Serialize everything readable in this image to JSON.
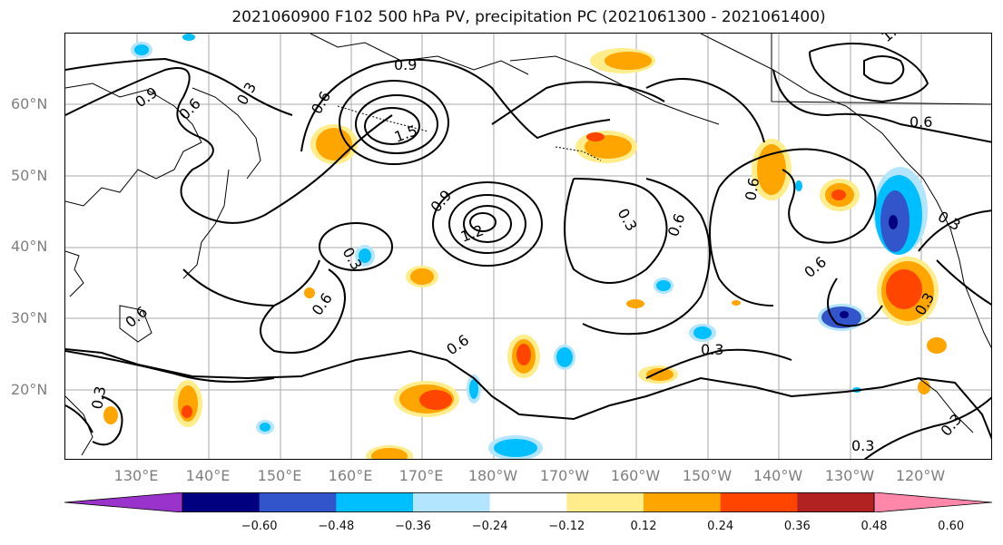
{
  "title": "2021060900 F102 500 hPa PV, precipitation PC (2021061300 - 2021061400)",
  "lat_labels": [
    "60°N",
    "50°N",
    "40°N",
    "30°N",
    "20°N"
  ],
  "lon_labels": [
    "130°E",
    "140°E",
    "150°E",
    "160°E",
    "170°E",
    "180°W",
    "170°W",
    "160°W",
    "150°W",
    "140°W",
    "130°W",
    "120°W"
  ],
  "contour_labels": [
    "0.3",
    "0.6",
    "0.9",
    "1.5",
    "0.9",
    "1.2",
    "0.3",
    "0.6",
    "0.6",
    "0.9",
    "0.3",
    "0.6",
    "0.6",
    "0.6",
    "0.3",
    "0.6",
    "0.3",
    "0.3",
    "0.3",
    "0.6",
    "0.3",
    "1.2",
    "0.6",
    "0.3"
  ],
  "colorbar": {
    "tick_labels": [
      "−0.60",
      "−0.48",
      "−0.36",
      "−0.24",
      "−0.12",
      "0.12",
      "0.24",
      "0.36",
      "0.48",
      "0.60"
    ],
    "colors": [
      "#9933cc",
      "#000080",
      "#3355cc",
      "#00bfff",
      "#b3e5ff",
      "#ffffff",
      "#ffec8b",
      "#ffa500",
      "#ff4500",
      "#b22222",
      "#ff88aa"
    ]
  },
  "map": {
    "projection": "equirectangular",
    "lon_range": "120°E – 110°W",
    "lat_range": "10°N – 70°N",
    "gridlines": true,
    "coastlines": true
  }
}
